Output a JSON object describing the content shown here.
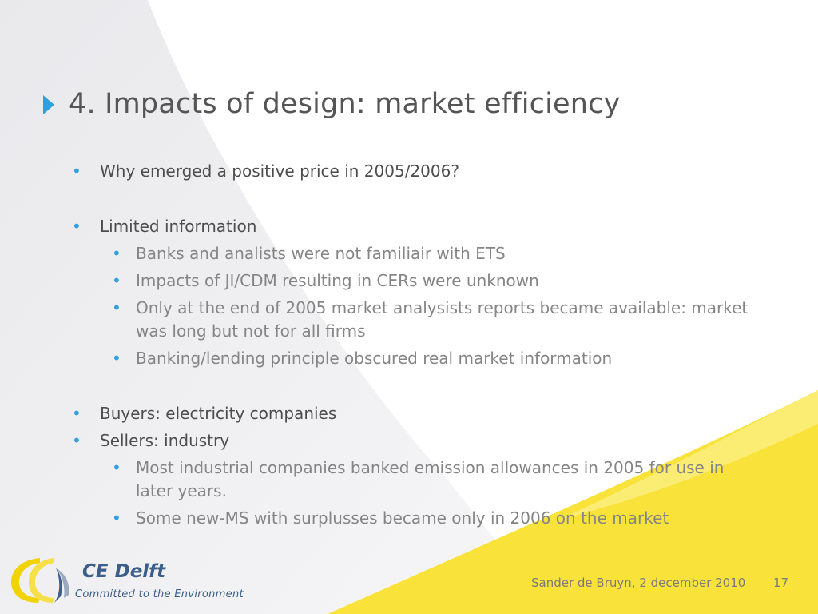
{
  "slide": {
    "title": "4. Impacts of design: market efficiency",
    "bullets": [
      {
        "text": "Why emerged a positive price in 2005/2006?"
      },
      {
        "text": "Limited information"
      },
      {
        "text": "Banks and analists were not familiair with ETS"
      },
      {
        "text": "Impacts of JI/CDM resulting in CERs were unknown"
      },
      {
        "text": "Only at the end of 2005 market analysists reports became available: market was long but not for all firms"
      },
      {
        "text": "Banking/lending principle obscured real market information"
      },
      {
        "text": "Buyers: electricity companies"
      },
      {
        "text": "Sellers: industry"
      },
      {
        "text": "Most industrial companies banked emission allowances in 2005 for use in later years."
      },
      {
        "text": "Some new-MS with surplusses became only in 2006 on the market"
      }
    ],
    "bullet_glyph": "•"
  },
  "footer": {
    "presenter": "Sander de Bruyn, 2 december 2010",
    "page_number": "17"
  },
  "logo": {
    "name": "CE Delft",
    "tagline": "Committed to the Environment"
  },
  "colors": {
    "accent_blue": "#2f9fe0",
    "yellow": "#f9e33a",
    "logo_blue": "#3b5f8a"
  }
}
